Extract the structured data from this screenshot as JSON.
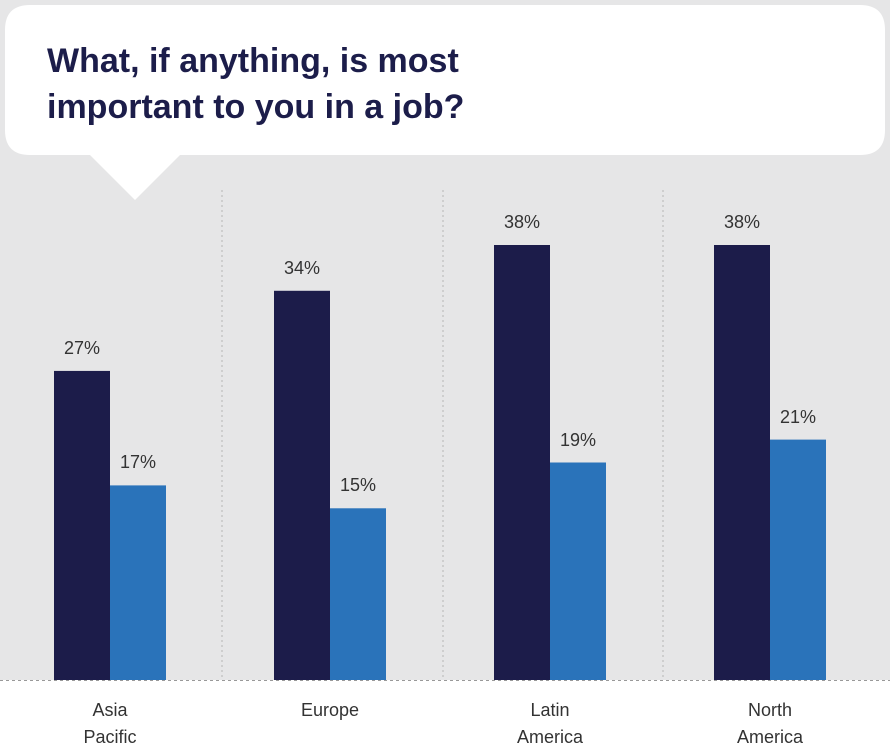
{
  "chart_data": {
    "type": "bar",
    "title": "What, if anything, is most important to you in a job?",
    "categories": [
      "Asia Pacific",
      "Europe",
      "Latin America",
      "North America"
    ],
    "series": [
      {
        "color": "#1c1c4a",
        "values": [
          27,
          34,
          38,
          38
        ],
        "value_labels": [
          "27%",
          "34%",
          "38%",
          "38%"
        ]
      },
      {
        "color": "#2a73ba",
        "values": [
          17,
          15,
          19,
          21
        ],
        "value_labels": [
          "17%",
          "15%",
          "19%",
          "21%"
        ]
      }
    ]
  }
}
